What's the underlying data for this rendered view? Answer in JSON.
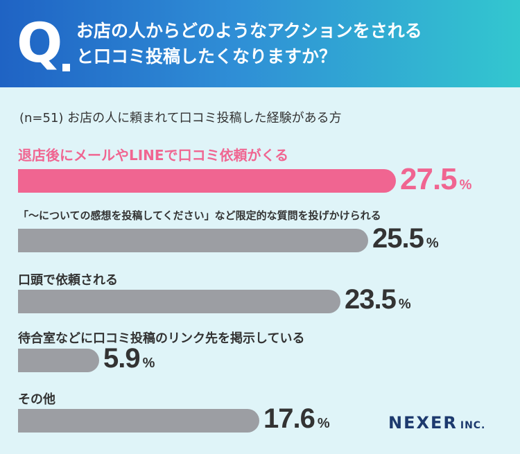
{
  "header": {
    "q_mark": "Q",
    "question_line1": "お店の人からどのようなアクションをされる",
    "question_line2": "と口コミ投稿したくなりますか？"
  },
  "chart_data": {
    "type": "bar",
    "orientation": "horizontal",
    "subtitle": "(n=51) お店の人に頼まれて口コミ投稿した経験がある方",
    "categories": [
      "退店後にメールやLINEで口コミ依頼がくる",
      "「～についての感想を投稿してください」など限定的な質問を投げかけられる",
      "口頭で依頼される",
      "待合室などに口コミ投稿のリンク先を掲示している",
      "その他"
    ],
    "values": [
      27.5,
      25.5,
      23.5,
      5.9,
      17.6
    ],
    "unit": "%",
    "highlight_index": 0,
    "colors": {
      "highlight": "#f06591",
      "default": "#9c9ea3",
      "text": "#333333"
    }
  },
  "footer": {
    "logo": "NEXER",
    "logo_suffix": "INC."
  }
}
